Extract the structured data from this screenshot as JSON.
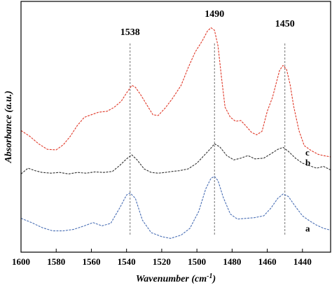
{
  "chart_data": {
    "type": "line",
    "xlabel": "Wavenumber",
    "xlabel_unit": "(cm",
    "xlabel_unit_sup": "-1",
    "xlabel_unit_close": ")",
    "ylabel": "Absorbance (a.u.)",
    "xlim": [
      1600,
      1424
    ],
    "x_reversed": true,
    "x_ticks": [
      1600,
      1580,
      1560,
      1540,
      1520,
      1500,
      1480,
      1460,
      1440
    ],
    "y_ticks_shown": false,
    "ylim": [
      0,
      1
    ],
    "grid": false,
    "annotations": [
      {
        "label": "1538",
        "x": 1538
      },
      {
        "label": "1490",
        "x": 1490
      },
      {
        "label": "1450",
        "x": 1450
      }
    ],
    "series": [
      {
        "name": "a",
        "color": "#4a6fb5",
        "points": [
          [
            1600,
            0.135
          ],
          [
            1594,
            0.118
          ],
          [
            1588,
            0.098
          ],
          [
            1582,
            0.085
          ],
          [
            1576,
            0.085
          ],
          [
            1570,
            0.091
          ],
          [
            1564,
            0.105
          ],
          [
            1559,
            0.118
          ],
          [
            1554,
            0.105
          ],
          [
            1549,
            0.115
          ],
          [
            1544,
            0.175
          ],
          [
            1540,
            0.228
          ],
          [
            1538,
            0.236
          ],
          [
            1535,
            0.215
          ],
          [
            1531,
            0.128
          ],
          [
            1526,
            0.078
          ],
          [
            1520,
            0.062
          ],
          [
            1515,
            0.055
          ],
          [
            1509,
            0.068
          ],
          [
            1504,
            0.095
          ],
          [
            1499,
            0.162
          ],
          [
            1495,
            0.252
          ],
          [
            1492,
            0.295
          ],
          [
            1490,
            0.302
          ],
          [
            1488,
            0.285
          ],
          [
            1485,
            0.218
          ],
          [
            1481,
            0.152
          ],
          [
            1477,
            0.132
          ],
          [
            1472,
            0.135
          ],
          [
            1467,
            0.138
          ],
          [
            1462,
            0.145
          ],
          [
            1458,
            0.175
          ],
          [
            1454,
            0.215
          ],
          [
            1451,
            0.232
          ],
          [
            1448,
            0.222
          ],
          [
            1444,
            0.182
          ],
          [
            1440,
            0.145
          ],
          [
            1436,
            0.125
          ],
          [
            1432,
            0.108
          ],
          [
            1428,
            0.095
          ],
          [
            1424,
            0.088
          ]
        ]
      },
      {
        "name": "b",
        "color": "#333333",
        "points": [
          [
            1600,
            0.312
          ],
          [
            1596,
            0.335
          ],
          [
            1592,
            0.325
          ],
          [
            1588,
            0.318
          ],
          [
            1583,
            0.315
          ],
          [
            1578,
            0.318
          ],
          [
            1573,
            0.312
          ],
          [
            1568,
            0.318
          ],
          [
            1563,
            0.315
          ],
          [
            1558,
            0.32
          ],
          [
            1553,
            0.318
          ],
          [
            1548,
            0.322
          ],
          [
            1544,
            0.345
          ],
          [
            1540,
            0.372
          ],
          [
            1537,
            0.388
          ],
          [
            1534,
            0.368
          ],
          [
            1530,
            0.332
          ],
          [
            1526,
            0.318
          ],
          [
            1522,
            0.315
          ],
          [
            1518,
            0.318
          ],
          [
            1514,
            0.322
          ],
          [
            1510,
            0.325
          ],
          [
            1505,
            0.332
          ],
          [
            1500,
            0.355
          ],
          [
            1496,
            0.385
          ],
          [
            1492,
            0.415
          ],
          [
            1490,
            0.432
          ],
          [
            1487,
            0.42
          ],
          [
            1483,
            0.385
          ],
          [
            1479,
            0.368
          ],
          [
            1475,
            0.375
          ],
          [
            1471,
            0.385
          ],
          [
            1467,
            0.372
          ],
          [
            1462,
            0.375
          ],
          [
            1458,
            0.392
          ],
          [
            1454,
            0.41
          ],
          [
            1451,
            0.418
          ],
          [
            1448,
            0.402
          ],
          [
            1444,
            0.375
          ],
          [
            1440,
            0.355
          ],
          [
            1436,
            0.345
          ],
          [
            1432,
            0.335
          ],
          [
            1428,
            0.342
          ],
          [
            1424,
            0.328
          ]
        ]
      },
      {
        "name": "c",
        "color": "#e03a2a",
        "points": [
          [
            1600,
            0.485
          ],
          [
            1595,
            0.462
          ],
          [
            1590,
            0.432
          ],
          [
            1585,
            0.41
          ],
          [
            1580,
            0.408
          ],
          [
            1576,
            0.428
          ],
          [
            1572,
            0.462
          ],
          [
            1568,
            0.505
          ],
          [
            1564,
            0.538
          ],
          [
            1560,
            0.548
          ],
          [
            1556,
            0.558
          ],
          [
            1551,
            0.562
          ],
          [
            1547,
            0.578
          ],
          [
            1543,
            0.602
          ],
          [
            1540,
            0.635
          ],
          [
            1537,
            0.665
          ],
          [
            1535,
            0.658
          ],
          [
            1532,
            0.628
          ],
          [
            1528,
            0.582
          ],
          [
            1525,
            0.548
          ],
          [
            1522,
            0.545
          ],
          [
            1518,
            0.575
          ],
          [
            1514,
            0.612
          ],
          [
            1509,
            0.665
          ],
          [
            1505,
            0.735
          ],
          [
            1501,
            0.798
          ],
          [
            1497,
            0.842
          ],
          [
            1494,
            0.882
          ],
          [
            1492,
            0.895
          ],
          [
            1490,
            0.885
          ],
          [
            1488,
            0.822
          ],
          [
            1486,
            0.695
          ],
          [
            1484,
            0.578
          ],
          [
            1481,
            0.538
          ],
          [
            1478,
            0.522
          ],
          [
            1475,
            0.525
          ],
          [
            1472,
            0.502
          ],
          [
            1469,
            0.478
          ],
          [
            1466,
            0.468
          ],
          [
            1463,
            0.482
          ],
          [
            1460,
            0.562
          ],
          [
            1457,
            0.618
          ],
          [
            1455,
            0.672
          ],
          [
            1453,
            0.725
          ],
          [
            1451,
            0.745
          ],
          [
            1449,
            0.728
          ],
          [
            1447,
            0.668
          ],
          [
            1445,
            0.582
          ],
          [
            1442,
            0.485
          ],
          [
            1439,
            0.425
          ],
          [
            1435,
            0.405
          ],
          [
            1431,
            0.39
          ],
          [
            1428,
            0.385
          ],
          [
            1424,
            0.38
          ]
        ]
      }
    ]
  }
}
